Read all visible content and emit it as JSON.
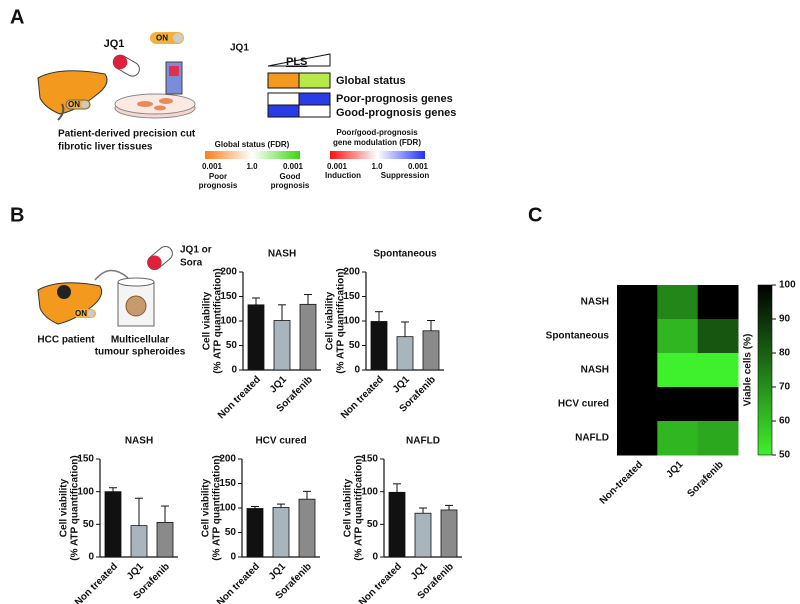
{
  "panel_labels": [
    "A",
    "B",
    "C"
  ],
  "panel_a": {
    "drug": "JQ1",
    "switch_1": "ON",
    "switch_2": "ON",
    "caption": [
      "Patient-derived precision cut",
      "fibrotic liver tissues"
    ],
    "legend_drug": "JQ1",
    "legend_pls": "PLS",
    "row_labels": [
      "Global status",
      "Poor-prognosis genes",
      "Good-prognosis genes"
    ],
    "scale_1": {
      "title": "Global status (FDR)",
      "ticks": [
        "0.001",
        "1.0",
        "0.001"
      ],
      "ends": [
        [
          "Poor",
          "prognosis"
        ],
        [
          "Good",
          "prognosis"
        ]
      ]
    },
    "scale_2": {
      "title": [
        "Poor/good-prognosis",
        "gene modulation (FDR)"
      ],
      "ticks": [
        "0.001",
        "1.0",
        "0.001"
      ],
      "ends": [
        "Induction",
        "Suppression"
      ]
    }
  },
  "panel_b": {
    "drug": [
      "JQ1 or",
      "Sora"
    ],
    "switch": "ON",
    "patient": "HCC patient",
    "model": [
      "Multicellular",
      "tumour spheroides"
    ]
  },
  "chart_data": [
    {
      "type": "bar",
      "title": "NASH",
      "ylabel": [
        "Cell viability",
        "(% ATP quantification)"
      ],
      "categories": [
        "Non treated",
        "JQ1",
        "Sorafenib"
      ],
      "values": [
        133,
        101,
        134
      ],
      "errors": [
        14,
        32,
        20
      ],
      "colors": [
        "#111111",
        "#a9b5bd",
        "#8a8a8a"
      ],
      "ylim": [
        0,
        200
      ],
      "yticks": [
        0,
        50,
        100,
        150,
        200
      ]
    },
    {
      "type": "bar",
      "title": "Spontaneous",
      "ylabel": [
        "Cell viability",
        "(% ATP quantification)"
      ],
      "categories": [
        "Non treated",
        "JQ1",
        "Sorafenib"
      ],
      "values": [
        99,
        68,
        80
      ],
      "errors": [
        20,
        30,
        21
      ],
      "colors": [
        "#111111",
        "#a9b5bd",
        "#8a8a8a"
      ],
      "ylim": [
        0,
        200
      ],
      "yticks": [
        0,
        50,
        100,
        150,
        200
      ]
    },
    {
      "type": "bar",
      "title": "NASH",
      "ylabel": [
        "Cell viability",
        "(% ATP quantification)"
      ],
      "categories": [
        "Non treated",
        "JQ1",
        "Sorafenib"
      ],
      "values": [
        100,
        48,
        53
      ],
      "errors": [
        6,
        42,
        25
      ],
      "colors": [
        "#111111",
        "#a9b5bd",
        "#8a8a8a"
      ],
      "ylim": [
        0,
        150
      ],
      "yticks": [
        0,
        50,
        100,
        150
      ]
    },
    {
      "type": "bar",
      "title": "HCV cured",
      "ylabel": [
        "Cell viability",
        "(% ATP quantification)"
      ],
      "categories": [
        "Non treated",
        "JQ1",
        "Sorafenib"
      ],
      "values": [
        99,
        101,
        118
      ],
      "errors": [
        4,
        7,
        16
      ],
      "colors": [
        "#111111",
        "#a9b5bd",
        "#8a8a8a"
      ],
      "ylim": [
        0,
        200
      ],
      "yticks": [
        0,
        50,
        100,
        150,
        200
      ]
    },
    {
      "type": "bar",
      "title": "NAFLD",
      "ylabel": [
        "Cell viability",
        "(% ATP quantification)"
      ],
      "categories": [
        "Non treated",
        "JQ1",
        "Sorafenib"
      ],
      "values": [
        99,
        67,
        72
      ],
      "errors": [
        13,
        8,
        7
      ],
      "colors": [
        "#111111",
        "#a9b5bd",
        "#8a8a8a"
      ],
      "ylim": [
        0,
        150
      ],
      "yticks": [
        0,
        50,
        100,
        150
      ]
    },
    {
      "type": "heatmap",
      "rows": [
        "NASH",
        "Spontaneous",
        "NASH",
        "HCV cured",
        "NAFLD"
      ],
      "columns": [
        "Non-treated",
        "JQ1",
        "Sorafenib"
      ],
      "values": [
        [
          100,
          72,
          100
        ],
        [
          100,
          62,
          82
        ],
        [
          100,
          50,
          50
        ],
        [
          100,
          100,
          100
        ],
        [
          100,
          62,
          65
        ]
      ],
      "zlim": [
        50,
        100
      ],
      "zticks": [
        50,
        60,
        70,
        80,
        90,
        100
      ],
      "colorbar_label": "Viable cells (%)",
      "colors": [
        "#3ff02c",
        "#000000"
      ]
    }
  ]
}
